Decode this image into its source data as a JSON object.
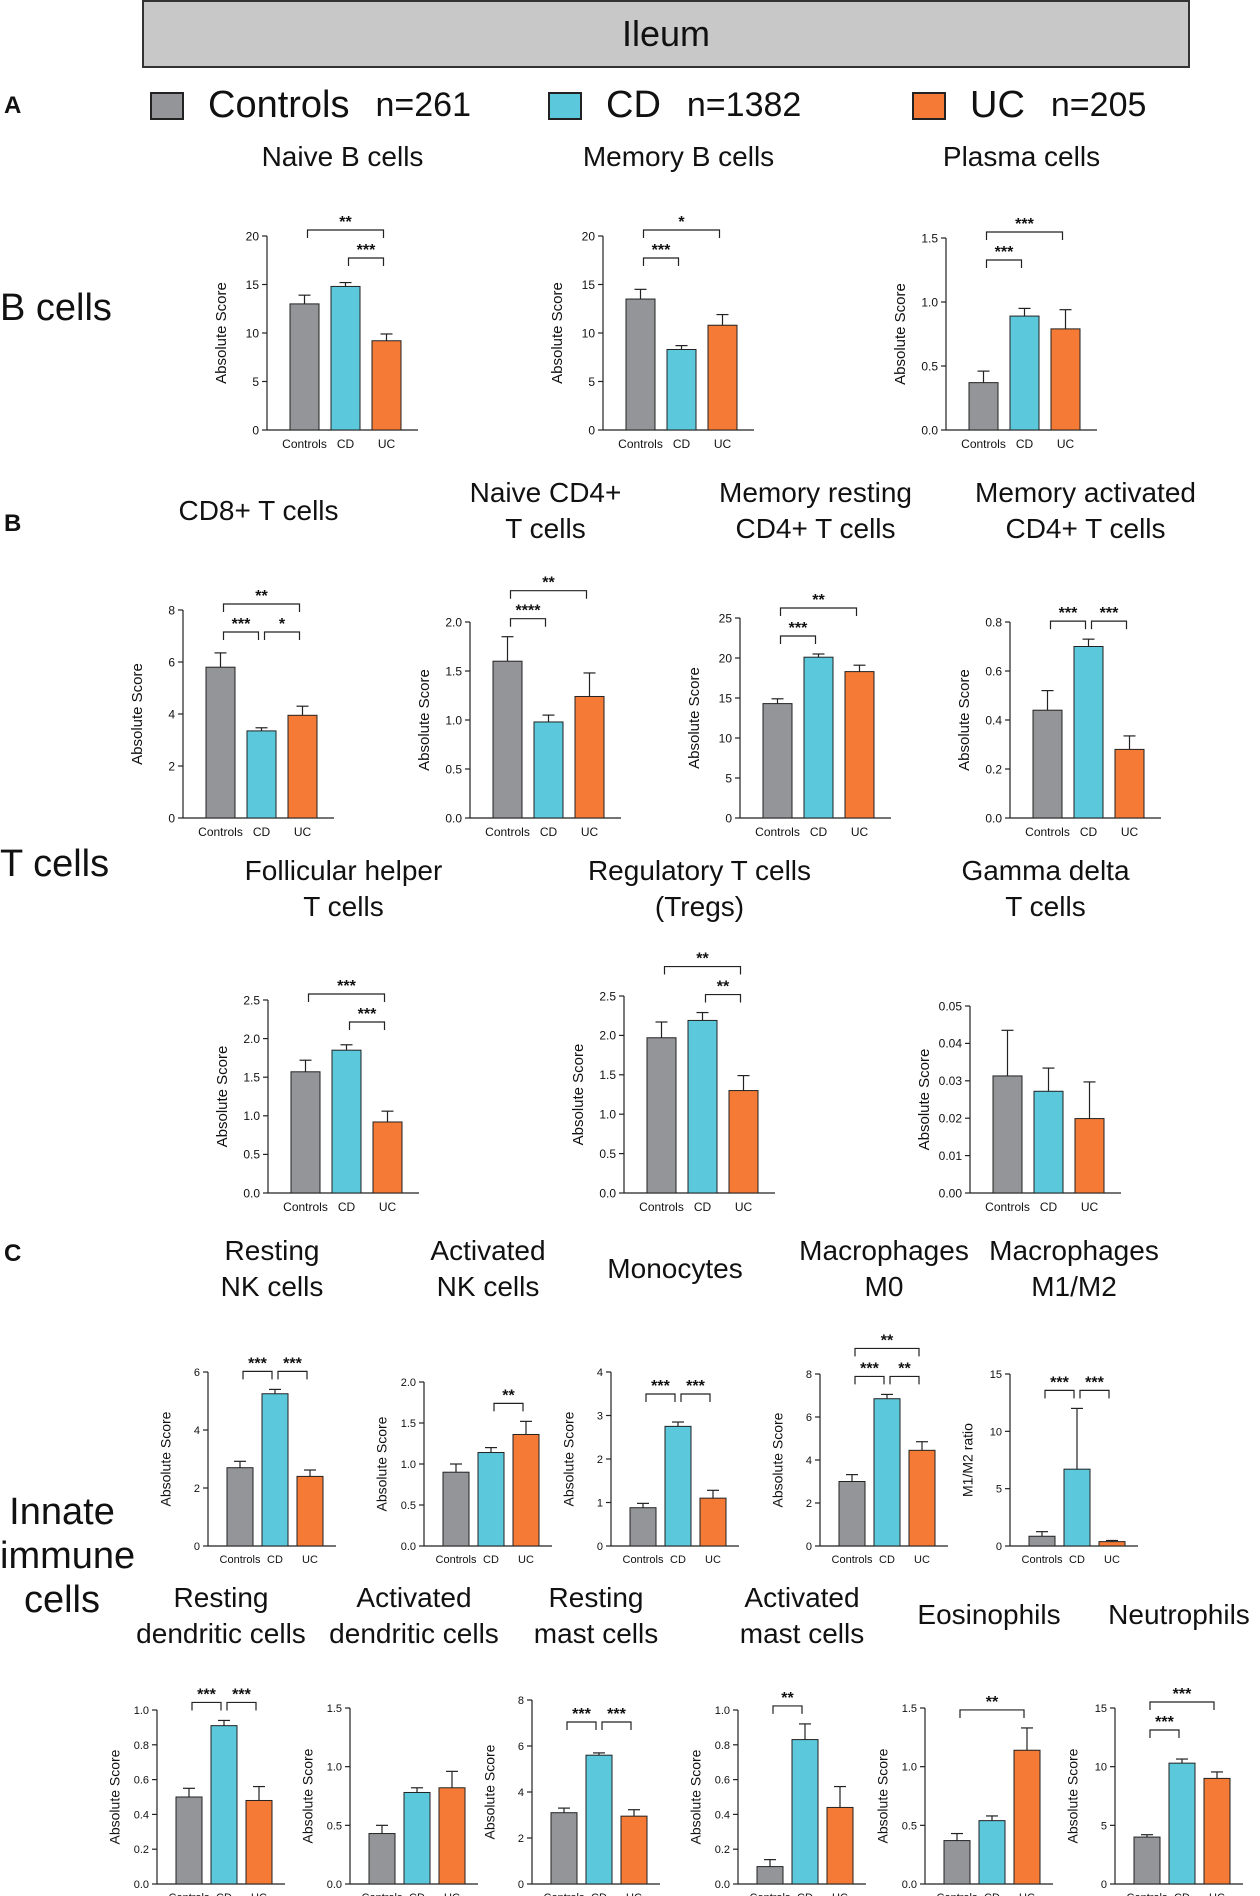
{
  "banner": {
    "title": "Ileum"
  },
  "panels": {
    "a": "A",
    "b": "B",
    "c": "C"
  },
  "groups": {
    "b_cells": "B cells",
    "t_cells": "T cells",
    "innate_line1": "Innate",
    "innate_line2": "immune",
    "innate_line3": "cells"
  },
  "legend": [
    {
      "label": "Controls",
      "n": "n=261",
      "color": "#939598"
    },
    {
      "label": "CD",
      "n": "n=1382",
      "color": "#5bc8dc"
    },
    {
      "label": "UC",
      "n": "n=205",
      "color": "#f47a35"
    }
  ],
  "colors": {
    "controls": "#939598",
    "cd": "#5bc8dc",
    "uc": "#f47a35",
    "axis": "#222222"
  },
  "chart_data": [
    {
      "type": "bar",
      "title": [
        "Naive B cells"
      ],
      "ylabel": "Absolute Score",
      "categories": [
        "Controls",
        "CD",
        "UC"
      ],
      "values": [
        13.0,
        14.8,
        9.2
      ],
      "errors": [
        0.9,
        0.4,
        0.7
      ],
      "ylim": [
        0,
        20
      ],
      "yticks": [
        "0",
        "5",
        "10",
        "15",
        "20"
      ],
      "significance": [
        {
          "from": 0,
          "to": 2,
          "label": "**"
        },
        {
          "from": 1,
          "to": 2,
          "label": "***"
        }
      ]
    },
    {
      "type": "bar",
      "title": [
        "Memory B cells"
      ],
      "ylabel": "Absolute Score",
      "categories": [
        "Controls",
        "CD",
        "UC"
      ],
      "values": [
        13.5,
        8.3,
        10.8
      ],
      "errors": [
        1.0,
        0.4,
        1.1
      ],
      "ylim": [
        0,
        20
      ],
      "yticks": [
        "0",
        "5",
        "10",
        "15",
        "20"
      ],
      "significance": [
        {
          "from": 0,
          "to": 2,
          "label": "*"
        },
        {
          "from": 0,
          "to": 1,
          "label": "***"
        }
      ]
    },
    {
      "type": "bar",
      "title": [
        "Plasma cells"
      ],
      "ylabel": "Absolute Score",
      "categories": [
        "Controls",
        "CD",
        "UC"
      ],
      "values": [
        0.37,
        0.89,
        0.79
      ],
      "errors": [
        0.09,
        0.06,
        0.15
      ],
      "ylim": [
        0,
        1.5
      ],
      "yticks": [
        "0.0",
        "0.5",
        "1.0",
        "1.5"
      ],
      "significance": [
        {
          "from": 0,
          "to": 2,
          "label": "***"
        },
        {
          "from": 0,
          "to": 1,
          "label": "***"
        }
      ]
    },
    {
      "type": "bar",
      "title": [
        "CD8+ T cells"
      ],
      "ylabel": "Absolute Score",
      "categories": [
        "Controls",
        "CD",
        "UC"
      ],
      "values": [
        5.8,
        3.35,
        3.95
      ],
      "errors": [
        0.55,
        0.12,
        0.35
      ],
      "ylim": [
        0,
        8
      ],
      "yticks": [
        "0",
        "2",
        "4",
        "6",
        "8"
      ],
      "significance": [
        {
          "from": 0,
          "to": 2,
          "label": "**"
        },
        {
          "from": 0,
          "to": 1,
          "label": "***"
        },
        {
          "from": 1,
          "to": 2,
          "label": "*"
        }
      ]
    },
    {
      "type": "bar",
      "title": [
        "Naive CD4+",
        "T cells"
      ],
      "ylabel": "Absolute Score",
      "categories": [
        "Controls",
        "CD",
        "UC"
      ],
      "values": [
        1.6,
        0.98,
        1.24
      ],
      "errors": [
        0.25,
        0.07,
        0.24
      ],
      "ylim": [
        0,
        2.0
      ],
      "yticks": [
        "0.0",
        "0.5",
        "1.0",
        "1.5",
        "2.0"
      ],
      "significance": [
        {
          "from": 0,
          "to": 2,
          "label": "**"
        },
        {
          "from": 0,
          "to": 1,
          "label": "****"
        }
      ]
    },
    {
      "type": "bar",
      "title": [
        "Memory resting",
        "CD4+ T cells"
      ],
      "ylabel": "Absolute Score",
      "categories": [
        "Controls",
        "CD",
        "UC"
      ],
      "values": [
        14.3,
        20.1,
        18.3
      ],
      "errors": [
        0.6,
        0.4,
        0.8
      ],
      "ylim": [
        0,
        25
      ],
      "yticks": [
        "0",
        "5",
        "10",
        "15",
        "20",
        "25"
      ],
      "significance": [
        {
          "from": 0,
          "to": 2,
          "label": "**"
        },
        {
          "from": 0,
          "to": 1,
          "label": "***"
        }
      ]
    },
    {
      "type": "bar",
      "title": [
        "Memory activated",
        "CD4+ T cells"
      ],
      "ylabel": "Absolute Score",
      "categories": [
        "Controls",
        "CD",
        "UC"
      ],
      "values": [
        0.44,
        0.7,
        0.28
      ],
      "errors": [
        0.08,
        0.03,
        0.055
      ],
      "ylim": [
        0,
        0.8
      ],
      "yticks": [
        "0.0",
        "0.2",
        "0.4",
        "0.6",
        "0.8"
      ],
      "significance": [
        {
          "from": 0,
          "to": 1,
          "label": "***"
        },
        {
          "from": 1,
          "to": 2,
          "label": "***"
        }
      ]
    },
    {
      "type": "bar",
      "title": [
        "Follicular helper",
        "T cells"
      ],
      "ylabel": "Absolute Score",
      "categories": [
        "Controls",
        "CD",
        "UC"
      ],
      "values": [
        1.57,
        1.85,
        0.92
      ],
      "errors": [
        0.15,
        0.07,
        0.14
      ],
      "ylim": [
        0,
        2.5
      ],
      "yticks": [
        "0.0",
        "0.5",
        "1.0",
        "1.5",
        "2.0",
        "2.5"
      ],
      "significance": [
        {
          "from": 0,
          "to": 2,
          "label": "***"
        },
        {
          "from": 1,
          "to": 2,
          "label": "***"
        }
      ]
    },
    {
      "type": "bar",
      "title": [
        "Regulatory T cells",
        "(Tregs)"
      ],
      "ylabel": "Absolute Score",
      "categories": [
        "Controls",
        "CD",
        "UC"
      ],
      "values": [
        1.97,
        2.19,
        1.3
      ],
      "errors": [
        0.2,
        0.1,
        0.19
      ],
      "ylim": [
        0,
        2.5
      ],
      "yticks": [
        "0.0",
        "0.5",
        "1.0",
        "1.5",
        "2.0",
        "2.5"
      ],
      "significance": [
        {
          "from": 0,
          "to": 2,
          "label": "**"
        },
        {
          "from": 1,
          "to": 2,
          "label": "**"
        }
      ]
    },
    {
      "type": "bar",
      "title": [
        "Gamma delta",
        "T cells"
      ],
      "ylabel": "Absolute Score",
      "categories": [
        "Controls",
        "CD",
        "UC"
      ],
      "values": [
        0.0313,
        0.0272,
        0.0199
      ],
      "errors": [
        0.0122,
        0.0062,
        0.0098
      ],
      "ylim": [
        0,
        0.05
      ],
      "yticks": [
        "0.00",
        "0.01",
        "0.02",
        "0.03",
        "0.04",
        "0.05"
      ],
      "significance": []
    },
    {
      "type": "bar",
      "title": [
        "Resting",
        "NK cells"
      ],
      "ylabel": "Absolute Score",
      "categories": [
        "Controls",
        "CD",
        "UC"
      ],
      "values": [
        2.7,
        5.25,
        2.4
      ],
      "errors": [
        0.22,
        0.15,
        0.22
      ],
      "ylim": [
        0,
        6
      ],
      "yticks": [
        "0",
        "2",
        "4",
        "6"
      ],
      "significance": [
        {
          "from": 0,
          "to": 1,
          "label": "***"
        },
        {
          "from": 1,
          "to": 2,
          "label": "***"
        }
      ]
    },
    {
      "type": "bar",
      "title": [
        "Activated",
        "NK cells"
      ],
      "ylabel": "Absolute Score",
      "categories": [
        "Controls",
        "CD",
        "UC"
      ],
      "values": [
        0.9,
        1.14,
        1.36
      ],
      "errors": [
        0.1,
        0.06,
        0.16
      ],
      "ylim": [
        0,
        2.0
      ],
      "yticks": [
        "0.0",
        "0.5",
        "1.0",
        "1.5",
        "2.0"
      ],
      "significance": [
        {
          "from": 1,
          "to": 2,
          "label": "**"
        }
      ]
    },
    {
      "type": "bar",
      "title": [
        "Monocytes"
      ],
      "ylabel": "Absolute Score",
      "categories": [
        "Controls",
        "CD",
        "UC"
      ],
      "values": [
        0.88,
        2.75,
        1.1
      ],
      "errors": [
        0.1,
        0.1,
        0.18
      ],
      "ylim": [
        0,
        4
      ],
      "yticks": [
        "0",
        "1",
        "2",
        "3",
        "4"
      ],
      "significance": [
        {
          "from": 0,
          "to": 1,
          "label": "***"
        },
        {
          "from": 1,
          "to": 2,
          "label": "***"
        }
      ]
    },
    {
      "type": "bar",
      "title": [
        "Macrophages",
        "M0"
      ],
      "ylabel": "Absolute Score",
      "categories": [
        "Controls",
        "CD",
        "UC"
      ],
      "values": [
        3.0,
        6.85,
        4.45
      ],
      "errors": [
        0.32,
        0.2,
        0.4
      ],
      "ylim": [
        0,
        8
      ],
      "yticks": [
        "0",
        "2",
        "4",
        "6",
        "8"
      ],
      "significance": [
        {
          "from": 0,
          "to": 2,
          "label": "**"
        },
        {
          "from": 0,
          "to": 1,
          "label": "***"
        },
        {
          "from": 1,
          "to": 2,
          "label": "**"
        }
      ]
    },
    {
      "type": "bar",
      "title": [
        "Macrophages",
        "M1/M2"
      ],
      "ylabel": "M1/M2 ratio",
      "categories": [
        "Controls",
        "CD",
        "UC"
      ],
      "values": [
        0.85,
        6.7,
        0.38
      ],
      "errors": [
        0.4,
        5.3,
        0.1
      ],
      "ylim": [
        0,
        15
      ],
      "yticks": [
        "0",
        "5",
        "10",
        "15"
      ],
      "significance": [
        {
          "from": 0,
          "to": 1,
          "label": "***"
        },
        {
          "from": 1,
          "to": 2,
          "label": "***"
        }
      ]
    },
    {
      "type": "bar",
      "title": [
        "Resting",
        "dendritic cells"
      ],
      "ylabel": "Absolute Score",
      "categories": [
        "Controls",
        "CD",
        "UC"
      ],
      "values": [
        0.5,
        0.91,
        0.48
      ],
      "errors": [
        0.05,
        0.03,
        0.08
      ],
      "ylim": [
        0,
        1.0
      ],
      "yticks": [
        "0.0",
        "0.2",
        "0.4",
        "0.6",
        "0.8",
        "1.0"
      ],
      "significance": [
        {
          "from": 0,
          "to": 1,
          "label": "***"
        },
        {
          "from": 1,
          "to": 2,
          "label": "***"
        }
      ]
    },
    {
      "type": "bar",
      "title": [
        "Activated",
        "dendritic cells"
      ],
      "ylabel": "Absolute Score",
      "categories": [
        "Controls",
        "CD",
        "UC"
      ],
      "values": [
        0.43,
        0.78,
        0.82
      ],
      "errors": [
        0.07,
        0.04,
        0.14
      ],
      "ylim": [
        0,
        1.5
      ],
      "yticks": [
        "0.0",
        "0.5",
        "1.0",
        "1.5"
      ],
      "significance": []
    },
    {
      "type": "bar",
      "title": [
        "Resting",
        "mast cells"
      ],
      "ylabel": "Absolute Score",
      "categories": [
        "Controls",
        "CD",
        "UC"
      ],
      "values": [
        3.1,
        5.6,
        2.95
      ],
      "errors": [
        0.2,
        0.1,
        0.28
      ],
      "ylim": [
        0,
        8
      ],
      "yticks": [
        "0",
        "2",
        "4",
        "6",
        "8"
      ],
      "significance": [
        {
          "from": 0,
          "to": 1,
          "label": "***"
        },
        {
          "from": 1,
          "to": 2,
          "label": "***"
        }
      ]
    },
    {
      "type": "bar",
      "title": [
        "Activated",
        "mast cells"
      ],
      "ylabel": "Absolute Score",
      "categories": [
        "Controls",
        "CD",
        "UC"
      ],
      "values": [
        0.1,
        0.83,
        0.44
      ],
      "errors": [
        0.04,
        0.09,
        0.12
      ],
      "ylim": [
        0,
        1.0
      ],
      "yticks": [
        "0.0",
        "0.2",
        "0.4",
        "0.6",
        "0.8",
        "1.0"
      ],
      "significance": [
        {
          "from": 0,
          "to": 1,
          "label": "**"
        }
      ]
    },
    {
      "type": "bar",
      "title": [
        "Eosinophils"
      ],
      "ylabel": "Absolute Score",
      "categories": [
        "Controls",
        "CD",
        "UC"
      ],
      "values": [
        0.37,
        0.54,
        1.14
      ],
      "errors": [
        0.06,
        0.04,
        0.19
      ],
      "ylim": [
        0,
        1.5
      ],
      "yticks": [
        "0.0",
        "0.5",
        "1.0",
        "1.5"
      ],
      "significance": [
        {
          "from": 0,
          "to": 2,
          "label": "**"
        }
      ]
    },
    {
      "type": "bar",
      "title": [
        "Neutrophils"
      ],
      "ylabel": "Absolute Score",
      "categories": [
        "Controls",
        "CD",
        "UC"
      ],
      "values": [
        4.0,
        10.3,
        9.0
      ],
      "errors": [
        0.2,
        0.35,
        0.55
      ],
      "ylim": [
        0,
        15
      ],
      "yticks": [
        "0",
        "5",
        "10",
        "15"
      ],
      "significance": [
        {
          "from": 0,
          "to": 2,
          "label": "***"
        },
        {
          "from": 0,
          "to": 1,
          "label": "***"
        }
      ]
    }
  ]
}
